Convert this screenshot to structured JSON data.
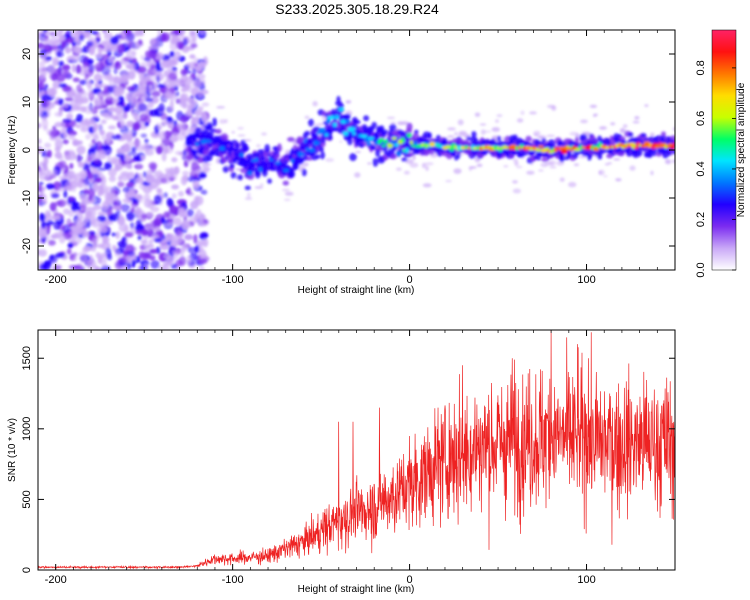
{
  "title": "S233.2025.305.18.29.R24",
  "colors": {
    "snr_line": "#ee2222",
    "spectral_colormap": [
      "#ffffff",
      "#c9a8f7",
      "#7b2cf0",
      "#2200ff",
      "#0077ff",
      "#00e5ff",
      "#00ff66",
      "#c8ff00",
      "#ffdd00",
      "#ff7700",
      "#ff1111",
      "#ff2266"
    ]
  },
  "chart_data": [
    {
      "type": "heatmap",
      "name": "spectrogram",
      "title": "",
      "xlabel": "Height of straight line (km)",
      "ylabel": "Frequency (Hz)",
      "xlim": [
        -210,
        150
      ],
      "ylim": [
        -25,
        25
      ],
      "x_ticks": [
        -200,
        -100,
        0,
        100
      ],
      "y_ticks": [
        -20,
        -10,
        0,
        10,
        20
      ],
      "colorbar": {
        "label": "Normalized spectral amplitude",
        "range": [
          0,
          0.95
        ],
        "ticks": [
          "0.0",
          "0.2",
          "0.4",
          "0.6",
          "0.8"
        ],
        "tick_values": [
          0,
          0.2,
          0.4,
          0.6,
          0.8
        ]
      },
      "noise_region_x": [
        -210,
        -125
      ],
      "signal_track": [
        {
          "x": -125,
          "y": 1,
          "amp": 0.3
        },
        {
          "x": -110,
          "y": 2,
          "amp": 0.3
        },
        {
          "x": -100,
          "y": -1,
          "amp": 0.25
        },
        {
          "x": -90,
          "y": -3,
          "amp": 0.25
        },
        {
          "x": -80,
          "y": -2,
          "amp": 0.25
        },
        {
          "x": -70,
          "y": -3,
          "amp": 0.25
        },
        {
          "x": -60,
          "y": 0,
          "amp": 0.3
        },
        {
          "x": -50,
          "y": 3,
          "amp": 0.3
        },
        {
          "x": -40,
          "y": 7,
          "amp": 0.35
        },
        {
          "x": -30,
          "y": 3,
          "amp": 0.35
        },
        {
          "x": -20,
          "y": 2,
          "amp": 0.4
        },
        {
          "x": -10,
          "y": 1.5,
          "amp": 0.45
        },
        {
          "x": 0,
          "y": 1.5,
          "amp": 0.5
        },
        {
          "x": 20,
          "y": 0.5,
          "amp": 0.6
        },
        {
          "x": 40,
          "y": 0.5,
          "amp": 0.65
        },
        {
          "x": 60,
          "y": 0.5,
          "amp": 0.7
        },
        {
          "x": 80,
          "y": 0,
          "amp": 0.75
        },
        {
          "x": 100,
          "y": 0.5,
          "amp": 0.8
        },
        {
          "x": 120,
          "y": 0.8,
          "amp": 0.85
        },
        {
          "x": 140,
          "y": 1,
          "amp": 0.9
        },
        {
          "x": 150,
          "y": 1,
          "amp": 0.95
        }
      ]
    },
    {
      "type": "line",
      "name": "snr",
      "title": "",
      "xlabel": "Height of straight line (km)",
      "ylabel": "SNR (10 * v/v)",
      "xlim": [
        -210,
        150
      ],
      "ylim": [
        0,
        1700
      ],
      "x_ticks": [
        -200,
        -100,
        0,
        100
      ],
      "y_ticks": [
        0,
        500,
        1000,
        1500
      ],
      "trend": [
        {
          "x": -210,
          "y": 20
        },
        {
          "x": -130,
          "y": 20
        },
        {
          "x": -120,
          "y": 30
        },
        {
          "x": -110,
          "y": 80
        },
        {
          "x": -100,
          "y": 80
        },
        {
          "x": -80,
          "y": 100
        },
        {
          "x": -60,
          "y": 200
        },
        {
          "x": -40,
          "y": 350
        },
        {
          "x": -20,
          "y": 450
        },
        {
          "x": 0,
          "y": 600
        },
        {
          "x": 20,
          "y": 780
        },
        {
          "x": 40,
          "y": 880
        },
        {
          "x": 60,
          "y": 920
        },
        {
          "x": 80,
          "y": 950
        },
        {
          "x": 100,
          "y": 920
        },
        {
          "x": 120,
          "y": 900
        },
        {
          "x": 150,
          "y": 900
        }
      ],
      "noise_fraction": 0.45,
      "peaks": [
        {
          "x": -40,
          "y": 1050
        },
        {
          "x": -32,
          "y": 1050
        },
        {
          "x": -17,
          "y": 1150
        },
        {
          "x": 30,
          "y": 1450
        },
        {
          "x": 58,
          "y": 1500
        },
        {
          "x": 80,
          "y": 1700
        },
        {
          "x": 95,
          "y": 1600
        },
        {
          "x": 101,
          "y": 1500
        }
      ]
    }
  ]
}
